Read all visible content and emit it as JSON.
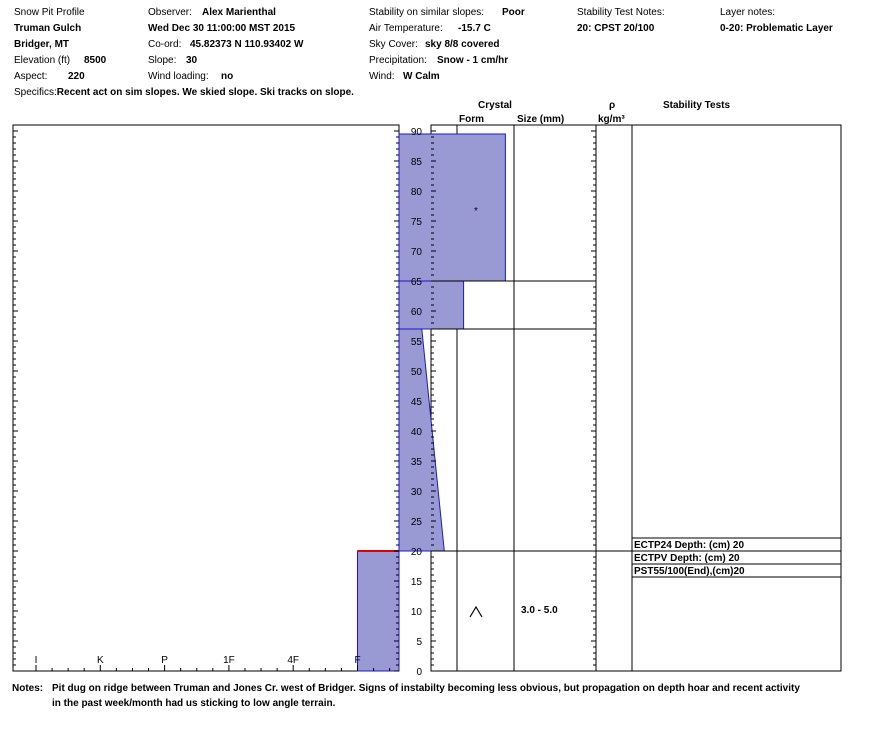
{
  "header": {
    "title": "Snow Pit Profile",
    "location": "Truman Gulch",
    "region": "Bridger, MT",
    "elevation_label": "Elevation (ft)",
    "elevation_value": "8500",
    "aspect_label": "Aspect:",
    "aspect_value": "220",
    "observer_label": "Observer:",
    "observer_value": "Alex Marienthal",
    "date": "Wed Dec 30 11:00:00 MST 2015",
    "coord_label": "Co-ord:",
    "coord_value": "45.82373 N 110.93402 W",
    "slope_label": "Slope:",
    "slope_value": "30",
    "wind_loading_label": "Wind loading:",
    "wind_loading_value": "no",
    "stability_label": "Stability on similar slopes:",
    "stability_value": "Poor",
    "air_temp_label": "Air Temperature:",
    "air_temp_value": "-15.7 C",
    "sky_label": "Sky Cover:",
    "sky_value": "sky 8/8 covered",
    "precip_label": "Precipitation:",
    "precip_value": "Snow - 1 cm/hr",
    "wind_label": "Wind:",
    "wind_value": "W Calm",
    "stab_notes_label": "Stability Test Notes:",
    "stab_notes_value": "20: CPST 20/100",
    "layer_notes_label": "Layer notes:",
    "layer_notes_value": "0-20: Problematic Layer",
    "specifics_label": "Specifics:",
    "specifics_value": "Recent act on sim slopes. We skied slope. Ski tracks on slope."
  },
  "columns": {
    "crystal": "Crystal",
    "form": "Form",
    "size": "Size (mm)",
    "rho": "ρ",
    "rho_unit": "kg/m³",
    "stability_tests": "Stability Tests"
  },
  "notes_label": "Notes:",
  "notes_line1": "Pit dug on ridge between Truman and Jones Cr. west of Bridger. Signs of instabilty becoming less obvious, but propagation on depth hoar and recent activity",
  "notes_line2": "in the past week/month had us sticking to low angle terrain.",
  "colors": {
    "profile_fill": "#9999d4",
    "profile_stroke": "#1a1acc",
    "weak_layer": "#e00000"
  },
  "chart_data": {
    "type": "area",
    "title": "",
    "hardness_ticks": [
      "I",
      "K",
      "P",
      "1F",
      "4F",
      "F"
    ],
    "depth_ticks": [
      0,
      5,
      10,
      15,
      20,
      25,
      30,
      35,
      40,
      45,
      50,
      55,
      60,
      65,
      70,
      75,
      80,
      85,
      90
    ],
    "ylim": [
      0,
      90
    ],
    "grid": false,
    "hardness_layers": [
      {
        "bottom": 0,
        "top": 20,
        "hardness_bottom": 6,
        "hardness_top": 6
      },
      {
        "bottom": 20,
        "top": 57,
        "hardness_bottom": 7.35,
        "hardness_top": 7
      },
      {
        "bottom": 57,
        "top": 65,
        "hardness_bottom": 7.65,
        "hardness_top": 7.65
      },
      {
        "bottom": 65,
        "top": 89.5,
        "hardness_bottom": 8.3,
        "hardness_top": 8.3
      }
    ],
    "weak_layer_depth": 20,
    "layer_boundaries": [
      20,
      57,
      65
    ],
    "crystals": [
      {
        "depth": 77.5,
        "form": "*",
        "size": ""
      },
      {
        "depth": 10,
        "form": "^",
        "size": "3.0 - 5.0"
      }
    ],
    "stability_tests": [
      {
        "depth": 20,
        "text": "ECTP24  Depth: (cm) 20"
      },
      {
        "depth": 20,
        "text": "ECTPV  Depth: (cm) 20"
      },
      {
        "depth": 20,
        "text": "PST55/100(End),(cm)20"
      }
    ]
  }
}
